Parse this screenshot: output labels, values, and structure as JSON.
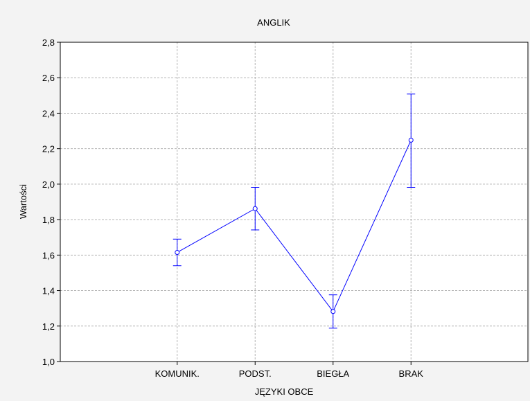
{
  "chart_data": {
    "type": "line",
    "title": "ANGLIK",
    "xlabel": "JĘZYKI OBCE",
    "ylabel": "Wartości",
    "categories": [
      "KOMUNIK.",
      "PODST.",
      "BIEGŁA",
      "BRAK"
    ],
    "series": [
      {
        "values": [
          1.615,
          1.862,
          1.282,
          2.248
        ],
        "error_lower": [
          1.54,
          1.742,
          1.188,
          1.982
        ],
        "error_upper": [
          1.69,
          1.982,
          1.376,
          2.508
        ]
      }
    ],
    "ylim": [
      1.0,
      2.8
    ],
    "yticks": [
      "1,0",
      "1,2",
      "1,4",
      "1,6",
      "1,8",
      "2,0",
      "2,2",
      "2,4",
      "2,6",
      "2,8"
    ],
    "ytick_values": [
      1.0,
      1.2,
      1.4,
      1.6,
      1.8,
      2.0,
      2.2,
      2.4,
      2.6,
      2.8
    ],
    "grid": true,
    "colors": {
      "series": "#0000ff",
      "grid": "#b4b4b4",
      "plot_background": "#ffffff",
      "page_background": "#f3f3f3"
    }
  }
}
